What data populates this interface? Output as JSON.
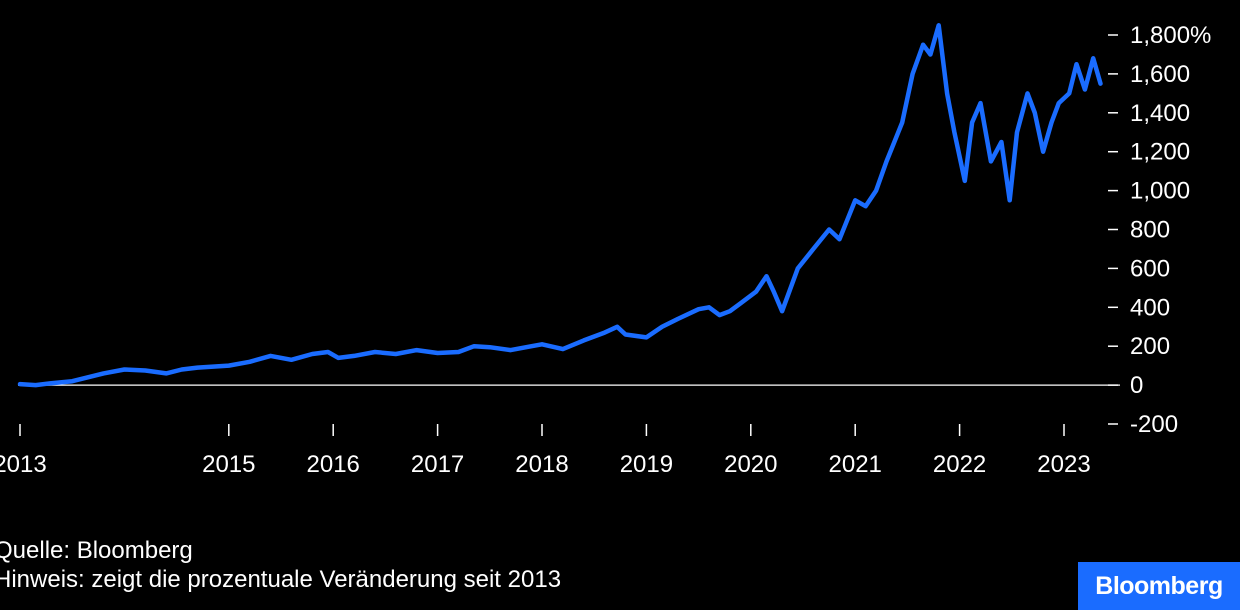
{
  "chart_data": {
    "type": "line",
    "title": "",
    "xlabel": "",
    "ylabel": "",
    "y_tick_labels": [
      "1,800%",
      "1,600",
      "1,400",
      "1,200",
      "1,000",
      "800",
      "600",
      "400",
      "200",
      "0",
      "-200"
    ],
    "y_tick_values": [
      1800,
      1600,
      1400,
      1200,
      1000,
      800,
      600,
      400,
      200,
      0,
      -200
    ],
    "ylim": [
      -200,
      1800
    ],
    "x_tick_labels": [
      "2013",
      "2015",
      "2016",
      "2017",
      "2018",
      "2019",
      "2020",
      "2021",
      "2022",
      "2023"
    ],
    "x_tick_values": [
      2013,
      2015,
      2016,
      2017,
      2018,
      2019,
      2020,
      2021,
      2022,
      2023
    ],
    "xlim": [
      2013,
      2023.4
    ],
    "zero_line": true,
    "grid": false,
    "legend": "none",
    "series": [
      {
        "color": "#1a6cff",
        "x": [
          2013.0,
          2013.15,
          2013.3,
          2013.5,
          2013.65,
          2013.8,
          2014.0,
          2014.2,
          2014.4,
          2014.55,
          2014.7,
          2014.85,
          2015.0,
          2015.2,
          2015.4,
          2015.6,
          2015.8,
          2015.95,
          2016.05,
          2016.2,
          2016.4,
          2016.6,
          2016.8,
          2017.0,
          2017.2,
          2017.35,
          2017.5,
          2017.7,
          2017.9,
          2018.0,
          2018.2,
          2018.4,
          2018.6,
          2018.72,
          2018.8,
          2019.0,
          2019.15,
          2019.3,
          2019.5,
          2019.6,
          2019.7,
          2019.8,
          2019.9,
          2020.05,
          2020.15,
          2020.22,
          2020.3,
          2020.45,
          2020.6,
          2020.75,
          2020.85,
          2021.0,
          2021.1,
          2021.2,
          2021.3,
          2021.45,
          2021.55,
          2021.65,
          2021.72,
          2021.8,
          2021.88,
          2021.95,
          2022.05,
          2022.12,
          2022.2,
          2022.3,
          2022.4,
          2022.48,
          2022.55,
          2022.65,
          2022.72,
          2022.8,
          2022.88,
          2022.95,
          2023.05,
          2023.12,
          2023.2,
          2023.28,
          2023.35
        ],
        "values": [
          5,
          0,
          10,
          20,
          40,
          60,
          80,
          75,
          60,
          80,
          90,
          95,
          100,
          120,
          150,
          130,
          160,
          170,
          140,
          150,
          170,
          160,
          180,
          165,
          170,
          200,
          195,
          180,
          200,
          210,
          185,
          230,
          270,
          300,
          260,
          245,
          300,
          340,
          390,
          400,
          360,
          380,
          420,
          480,
          560,
          480,
          380,
          600,
          700,
          800,
          750,
          950,
          920,
          1000,
          1150,
          1350,
          1600,
          1750,
          1700,
          1850,
          1500,
          1300,
          1050,
          1350,
          1450,
          1150,
          1250,
          950,
          1300,
          1500,
          1400,
          1200,
          1350,
          1450,
          1500,
          1650,
          1520,
          1680,
          1550
        ]
      }
    ]
  },
  "footer": {
    "source": "Quelle: Bloomberg",
    "note": "Hinweis: zeigt die prozentuale Veränderung seit 2013"
  },
  "brand": {
    "logo_text": "Bloomberg",
    "color": "#1a6cff"
  }
}
